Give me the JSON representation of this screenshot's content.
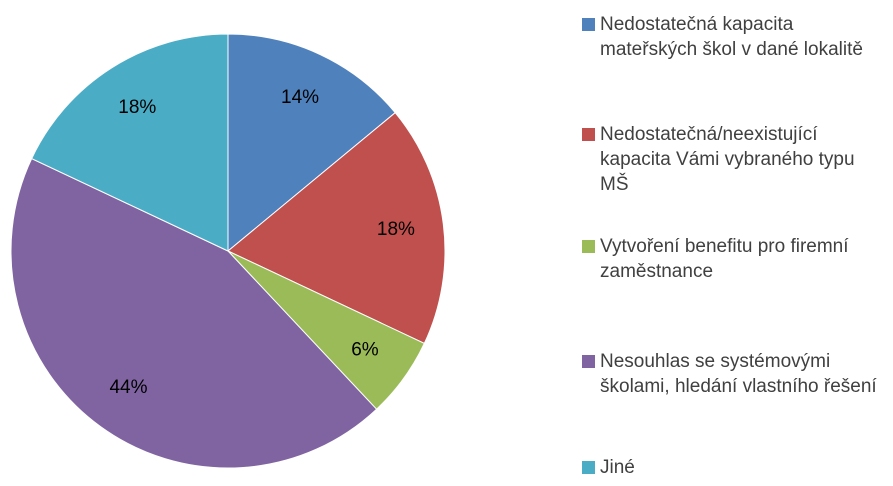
{
  "chart_data": {
    "type": "pie",
    "categories": [
      "Nedostatečná kapacita mateřských škol v dané lokalitě",
      "Nedostatečná/neexistující kapacita Vámi vybraného typu MŠ",
      "Vytvoření benefitu pro firemní zaměstnance",
      "Nesouhlas se systémovými školami, hledání vlastního řešení",
      "Jiné"
    ],
    "values": [
      14,
      18,
      6,
      44,
      18
    ],
    "value_labels": [
      "14%",
      "18%",
      "6%",
      "44%",
      "18%"
    ],
    "colors": [
      "#4f81bd",
      "#c0504d",
      "#9bbb59",
      "#8064a2",
      "#4bacc6"
    ],
    "legend": "right"
  }
}
